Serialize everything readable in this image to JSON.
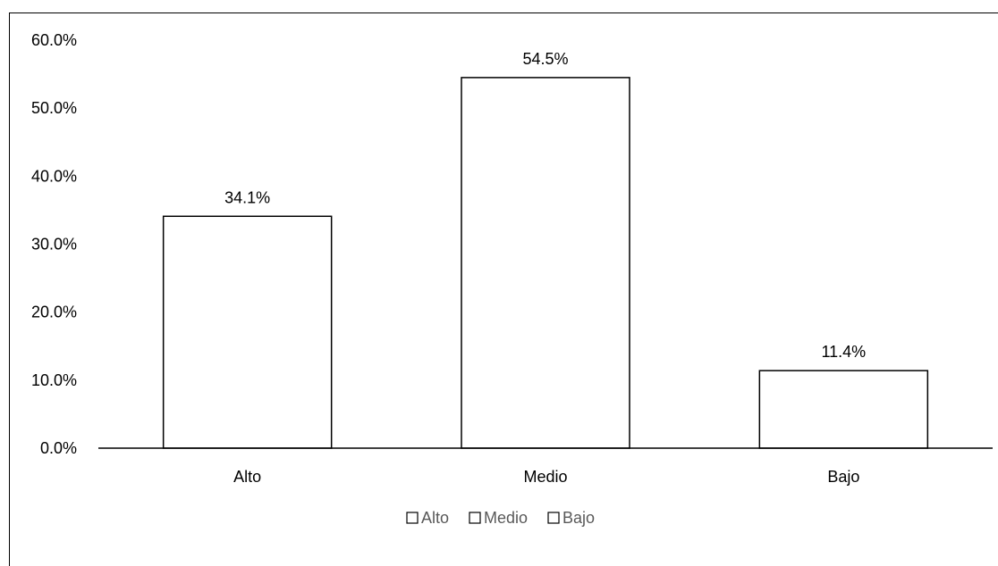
{
  "chart_data": {
    "type": "bar",
    "categories": [
      "Alto",
      "Medio",
      "Bajo"
    ],
    "values": [
      34.1,
      54.5,
      11.4
    ],
    "data_labels": [
      "34.1%",
      "54.5%",
      "11.4%"
    ],
    "ylim": [
      0,
      60
    ],
    "yticks": [
      {
        "value": 0,
        "label": "0.0%"
      },
      {
        "value": 10,
        "label": "10.0%"
      },
      {
        "value": 20,
        "label": "20.0%"
      },
      {
        "value": 30,
        "label": "30.0%"
      },
      {
        "value": 40,
        "label": "40.0%"
      },
      {
        "value": 50,
        "label": "50.0%"
      },
      {
        "value": 60,
        "label": "60.0%"
      }
    ],
    "legend": [
      "Alto",
      "Medio",
      "Bajo"
    ],
    "legend_position": "bottom",
    "grid": false,
    "colors": {
      "bar_fill": "#ffffff",
      "bar_stroke": "#000000",
      "axis": "#000000",
      "legend_text": "#595959"
    }
  }
}
